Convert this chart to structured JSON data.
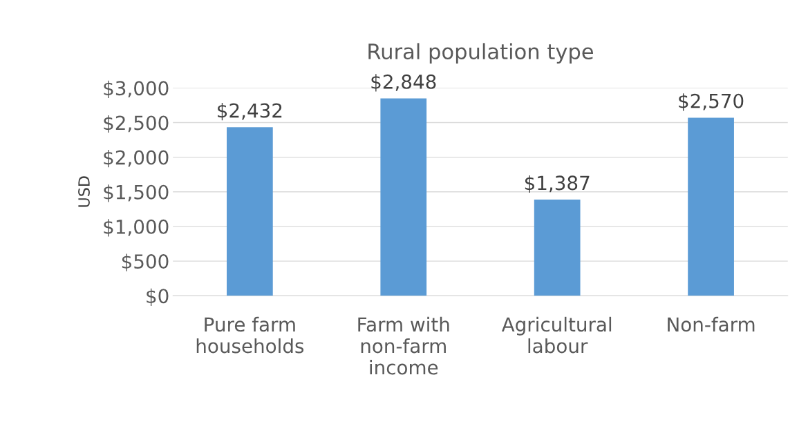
{
  "chart_data": {
    "type": "bar",
    "title": "Rural population type",
    "ylabel": "USD",
    "categories": [
      "Pure farm\nhouseholds",
      "Farm with\nnon-farm\nincome",
      "Agricultural\nlabour",
      "Non-farm"
    ],
    "values": [
      2432,
      2848,
      1387,
      2570
    ],
    "color": "#5b9bd5",
    "value_labels": [
      "$2,432",
      "$2,848",
      "$1,387",
      "$2,570"
    ],
    "ylim": [
      0,
      3000
    ],
    "yticks": [
      {
        "value": 0,
        "label": "$0"
      },
      {
        "value": 500,
        "label": "$500"
      },
      {
        "value": 1000,
        "label": "$1,000"
      },
      {
        "value": 1500,
        "label": "$1,500"
      },
      {
        "value": 2000,
        "label": "$2,000"
      },
      {
        "value": 2500,
        "label": "$2,500"
      },
      {
        "value": 3000,
        "label": "$3,000"
      }
    ],
    "grid": "y"
  }
}
